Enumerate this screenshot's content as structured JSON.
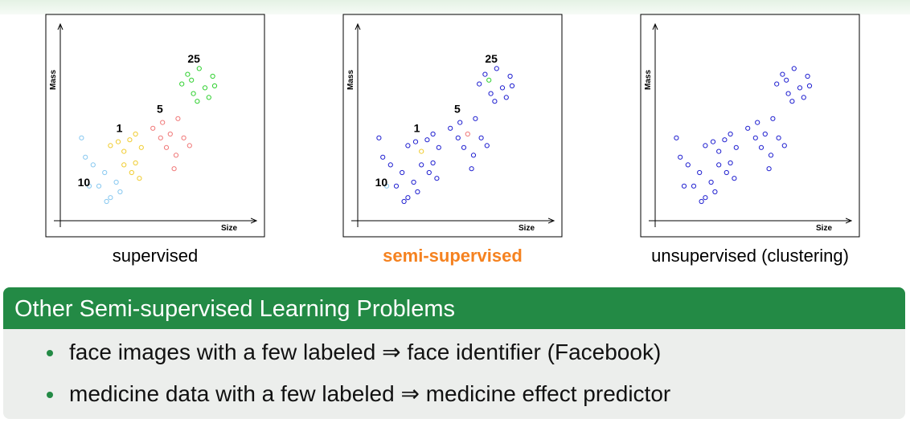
{
  "chart_data": [
    {
      "type": "scatter",
      "xlabel": "Size",
      "ylabel": "Mass",
      "caption": "supervised",
      "xlim": [
        0,
        10
      ],
      "ylim": [
        0,
        10
      ],
      "series": [
        {
          "color": "#87c8f0",
          "x": [
            1.1,
            1.3,
            1.7,
            2.0,
            2.3,
            2.6,
            2.9,
            1.5,
            3.1,
            2.4
          ],
          "values": [
            4.3,
            3.3,
            2.9,
            1.8,
            2.5,
            1.2,
            2.0,
            1.8,
            1.5,
            1.0
          ]
        },
        {
          "color": "#f0cc30",
          "x": [
            2.6,
            3.0,
            3.3,
            3.6,
            3.9,
            3.7,
            4.1,
            3.3,
            4.2,
            3.9
          ],
          "values": [
            3.9,
            4.1,
            3.6,
            4.2,
            3.0,
            2.5,
            2.2,
            2.9,
            3.8,
            4.5
          ]
        },
        {
          "color": "#f07878",
          "x": [
            4.8,
            5.3,
            5.7,
            6.1,
            5.5,
            6.0,
            6.4,
            5.9,
            6.7,
            5.2
          ],
          "values": [
            4.8,
            5.1,
            4.5,
            5.3,
            3.8,
            3.4,
            4.3,
            2.7,
            3.9,
            4.3
          ]
        },
        {
          "color": "#30d030",
          "x": [
            6.3,
            6.6,
            6.9,
            7.2,
            7.5,
            7.9,
            7.1,
            7.7,
            8.0,
            6.8
          ],
          "values": [
            7.1,
            7.6,
            6.6,
            7.9,
            6.9,
            7.5,
            6.2,
            6.4,
            7.0,
            7.3
          ]
        }
      ],
      "annotations": [
        {
          "text": "25",
          "x": 6.6,
          "y": 8.2
        },
        {
          "text": "5",
          "x": 5.0,
          "y": 5.6
        },
        {
          "text": "1",
          "x": 2.9,
          "y": 4.6
        },
        {
          "text": "10",
          "x": 0.9,
          "y": 1.8
        }
      ]
    },
    {
      "type": "scatter",
      "xlabel": "Size",
      "ylabel": "Mass",
      "caption": "semi-supervised",
      "xlim": [
        0,
        10
      ],
      "ylim": [
        0,
        10
      ],
      "series": [
        {
          "color": "#2020d0",
          "x": [
            1.1,
            1.3,
            1.7,
            2.0,
            2.3,
            2.6,
            2.9,
            3.1,
            2.4,
            2.6,
            3.0,
            3.6,
            3.9,
            3.7,
            4.1,
            3.3,
            4.2,
            3.9,
            4.8,
            5.3,
            6.1,
            5.5,
            6.0,
            6.4,
            5.9,
            6.7,
            5.2,
            6.3,
            6.6,
            6.9,
            7.2,
            7.5,
            7.9,
            7.1,
            7.7,
            8.0
          ],
          "values": [
            4.3,
            3.3,
            2.9,
            1.8,
            2.5,
            1.2,
            2.0,
            1.5,
            1.0,
            3.9,
            4.1,
            4.2,
            3.0,
            2.5,
            2.2,
            2.9,
            3.8,
            4.5,
            4.8,
            5.1,
            5.3,
            3.8,
            3.4,
            4.3,
            2.7,
            3.9,
            4.3,
            7.1,
            7.6,
            6.6,
            7.9,
            6.9,
            7.5,
            6.2,
            6.4,
            7.0
          ]
        },
        {
          "color": "#87c8f0",
          "x": [
            1.5
          ],
          "values": [
            1.8
          ]
        },
        {
          "color": "#f0cc30",
          "x": [
            3.3
          ],
          "values": [
            3.6
          ]
        },
        {
          "color": "#f07878",
          "x": [
            5.7
          ],
          "values": [
            4.5
          ]
        },
        {
          "color": "#30d030",
          "x": [
            6.8
          ],
          "values": [
            7.3
          ]
        }
      ],
      "annotations": [
        {
          "text": "25",
          "x": 6.6,
          "y": 8.2
        },
        {
          "text": "5",
          "x": 5.0,
          "y": 5.6
        },
        {
          "text": "1",
          "x": 2.9,
          "y": 4.6
        },
        {
          "text": "10",
          "x": 0.9,
          "y": 1.8
        }
      ]
    },
    {
      "type": "scatter",
      "xlabel": "Size",
      "ylabel": "Mass",
      "caption": "unsupervised (clustering)",
      "xlim": [
        0,
        10
      ],
      "ylim": [
        0,
        10
      ],
      "series": [
        {
          "color": "#2020d0",
          "x": [
            1.1,
            1.3,
            1.7,
            2.0,
            2.3,
            2.6,
            2.9,
            1.5,
            3.1,
            2.4,
            2.6,
            3.0,
            3.3,
            3.6,
            3.9,
            3.7,
            4.1,
            3.3,
            4.2,
            3.9,
            4.8,
            5.3,
            5.7,
            6.1,
            5.5,
            6.0,
            6.4,
            5.9,
            6.7,
            5.2,
            6.3,
            6.6,
            6.9,
            7.2,
            7.5,
            7.9,
            7.1,
            7.7,
            8.0,
            6.8
          ],
          "values": [
            4.3,
            3.3,
            2.9,
            1.8,
            2.5,
            1.2,
            2.0,
            1.8,
            1.5,
            1.0,
            3.9,
            4.1,
            3.6,
            4.2,
            3.0,
            2.5,
            2.2,
            2.9,
            3.8,
            4.5,
            4.8,
            5.1,
            4.5,
            5.3,
            3.8,
            3.4,
            4.3,
            2.7,
            3.9,
            4.3,
            7.1,
            7.6,
            6.6,
            7.9,
            6.9,
            7.5,
            6.2,
            6.4,
            7.0,
            7.3
          ]
        }
      ],
      "annotations": []
    }
  ],
  "box": {
    "title": "Other Semi-supervised Learning Problems",
    "items": [
      "face images with a few labeled ⇒ face identifier (Facebook)",
      "medicine data with a few labeled ⇒ medicine effect predictor"
    ]
  }
}
